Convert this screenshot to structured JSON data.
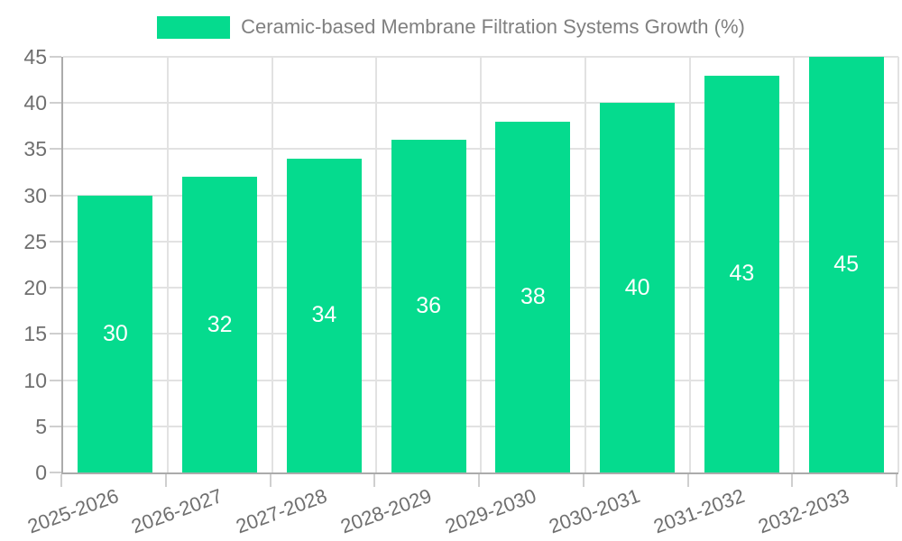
{
  "legend": {
    "label": "Ceramic-based Membrane Filtration Systems Growth (%)"
  },
  "colors": {
    "bar_color": "#05db8e",
    "grid_line": "#e2e2e2",
    "axis_line": "#ababab",
    "tick_color": "#cfcfcf",
    "tick_text": "#6f6f6f",
    "legend_text": "#808080",
    "value_label": "#ffffff"
  },
  "chart_data": {
    "type": "bar",
    "title": "Ceramic-based Membrane Filtration Systems Growth (%)",
    "categories": [
      "2025-2026",
      "2026-2027",
      "2027-2028",
      "2028-2029",
      "2029-2030",
      "2030-2031",
      "2031-2032",
      "2032-2033"
    ],
    "values": [
      30,
      32,
      34,
      36,
      38,
      40,
      43,
      45
    ],
    "series": [
      {
        "name": "Ceramic-based Membrane Filtration Systems Growth (%)",
        "values": [
          30,
          32,
          34,
          36,
          38,
          40,
          43,
          45
        ]
      }
    ],
    "xlabel": "",
    "ylabel": "",
    "ylim": [
      0,
      45
    ],
    "yticks": [
      0,
      5,
      10,
      15,
      20,
      25,
      30,
      35,
      40,
      45
    ],
    "grid": true,
    "legend_position": "top-center",
    "value_labels": "inside-center",
    "x_tick_rotation_deg": -20
  }
}
